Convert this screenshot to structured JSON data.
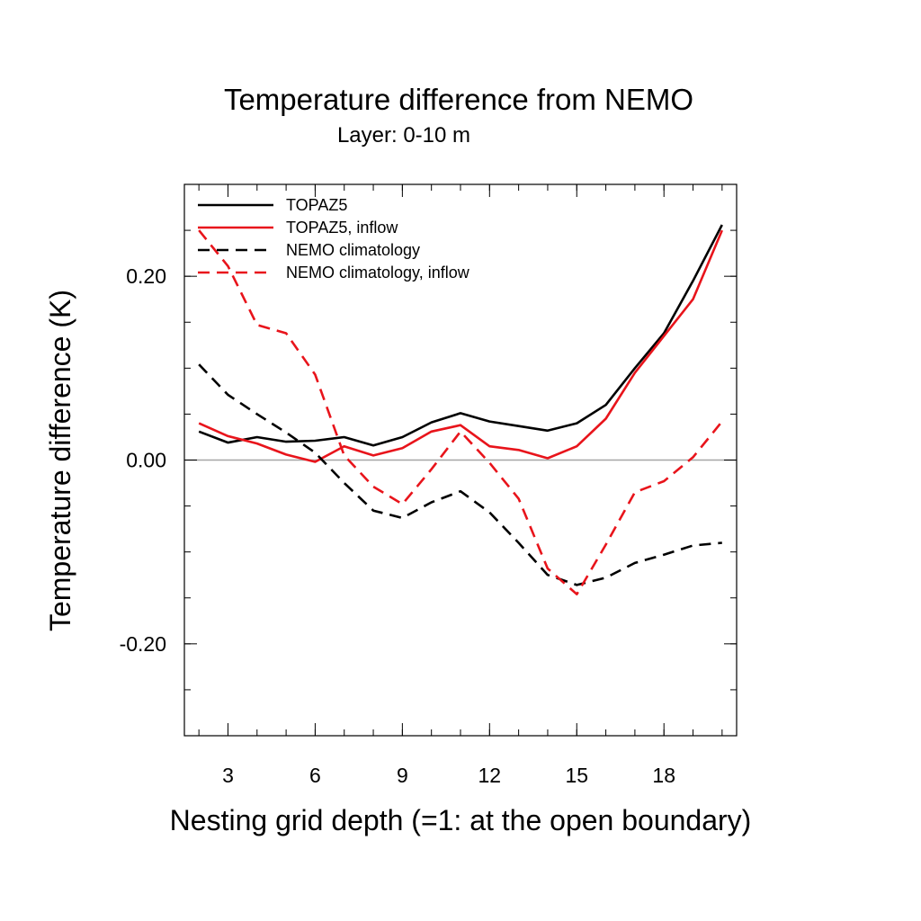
{
  "chart_data": {
    "type": "line",
    "title": "Temperature difference from NEMO",
    "subtitle": "Layer: 0-10 m",
    "xlabel": "Nesting grid depth (=1: at the open boundary)",
    "ylabel": "Temperature difference (K)",
    "xlim": [
      1.5,
      20.5
    ],
    "ylim": [
      -0.3,
      0.3
    ],
    "x_ticks": [
      3,
      6,
      9,
      12,
      15,
      18
    ],
    "x_tick_labels": [
      "3",
      "6",
      "9",
      "12",
      "15",
      "18"
    ],
    "y_ticks": [
      -0.2,
      0.0,
      0.2
    ],
    "y_tick_labels": [
      "-0.20",
      "0.00",
      "0.20"
    ],
    "x_minor_step": 1,
    "y_minor_step": 0.05,
    "zero_line": true,
    "grid": false,
    "legend_position": "top-left",
    "x": [
      2,
      3,
      4,
      5,
      6,
      7,
      8,
      9,
      10,
      11,
      12,
      13,
      14,
      15,
      16,
      17,
      18,
      19,
      20
    ],
    "series": [
      {
        "name": "TOPAZ5",
        "color": "#000000",
        "dash": "solid",
        "values": [
          0.031,
          0.019,
          0.025,
          0.02,
          0.021,
          0.025,
          0.016,
          0.025,
          0.041,
          0.051,
          0.042,
          0.037,
          0.032,
          0.04,
          0.06,
          0.1,
          0.138,
          0.195,
          0.256
        ]
      },
      {
        "name": "TOPAZ5, inflow",
        "color": "#e8141b",
        "dash": "solid",
        "values": [
          0.04,
          0.026,
          0.018,
          0.006,
          -0.002,
          0.015,
          0.005,
          0.013,
          0.031,
          0.038,
          0.015,
          0.011,
          0.002,
          0.015,
          0.045,
          0.095,
          0.135,
          0.175,
          0.25
        ]
      },
      {
        "name": "NEMO climatology",
        "color": "#000000",
        "dash": "dashed",
        "values": [
          0.104,
          0.071,
          0.05,
          0.03,
          0.008,
          -0.025,
          -0.055,
          -0.063,
          -0.046,
          -0.034,
          -0.057,
          -0.09,
          -0.125,
          -0.136,
          -0.128,
          -0.112,
          -0.103,
          -0.093,
          -0.09
        ]
      },
      {
        "name": "NEMO climatology, inflow",
        "color": "#e8141b",
        "dash": "dashed",
        "values": [
          0.25,
          0.211,
          0.147,
          0.138,
          0.093,
          0.005,
          -0.029,
          -0.048,
          -0.01,
          0.031,
          -0.003,
          -0.042,
          -0.118,
          -0.146,
          -0.092,
          -0.035,
          -0.023,
          0.003,
          0.042
        ]
      }
    ]
  }
}
